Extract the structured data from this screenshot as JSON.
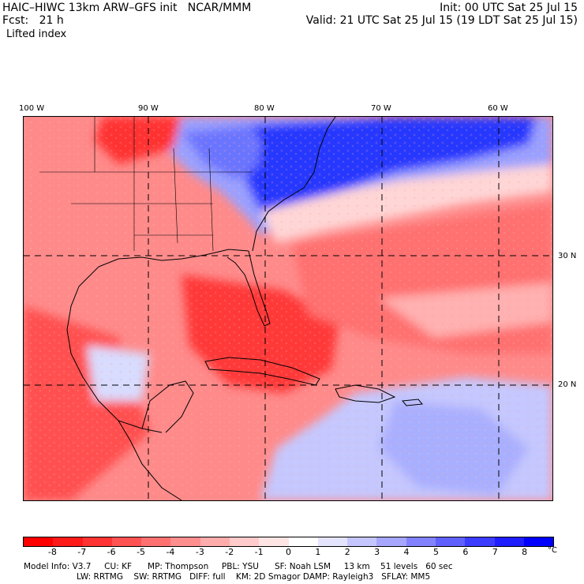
{
  "header": {
    "title": "HAIC–HIWC 13km ARW–GFS init   NCAR/MMM",
    "init": "Init: 00 UTC Sat 25 Jul 15",
    "fcst": "Fcst:   21 h",
    "valid": "Valid: 21 UTC Sat 25 Jul 15 (19 LDT Sat 25 Jul 15)",
    "field": "Lifted index"
  },
  "axes": {
    "lon_labels": [
      "100 W",
      "90 W",
      "80 W",
      "70 W",
      "60 W"
    ],
    "lat_labels": [
      "30 N",
      "20 N"
    ]
  },
  "colorbar": {
    "ticks": [
      "-8",
      "-7",
      "-6",
      "-5",
      "-4",
      "-3",
      "-2",
      "-1",
      "0",
      "1",
      "2",
      "3",
      "4",
      "5",
      "6",
      "7",
      "8"
    ],
    "unit": "°C",
    "colors": [
      "#ff0000",
      "#ff1a1a",
      "#ff3333",
      "#ff5252",
      "#ff7070",
      "#ff8e8e",
      "#ffacac",
      "#ffcaca",
      "#ffe4e4",
      "#ffffff",
      "#e4e4ff",
      "#c6c6ff",
      "#a6a6ff",
      "#8282ff",
      "#6060ff",
      "#3c3cff",
      "#1e1eff",
      "#0000ff"
    ]
  },
  "footer": {
    "line1": "Model Info: V3.7     CU: KF      MP: Thompson     PBL: YSU      SF: Noah LSM     13 km    51 levels   60 sec",
    "line2": "LW: RRTMG    SW: RRTMG   DIFF: full    KM: 2D Smagor DAMP: Rayleigh3   SFLAY: MM5"
  },
  "map": {
    "field_colors": {
      "strong_neg": "#ff3030",
      "mid_neg": "#ff7a7a",
      "weak_neg": "#ffbdbd",
      "neutral": "#fff4f4",
      "weak_pos": "#c8ccff",
      "mid_pos": "#7f86ff",
      "strong_pos": "#2030ff"
    }
  }
}
